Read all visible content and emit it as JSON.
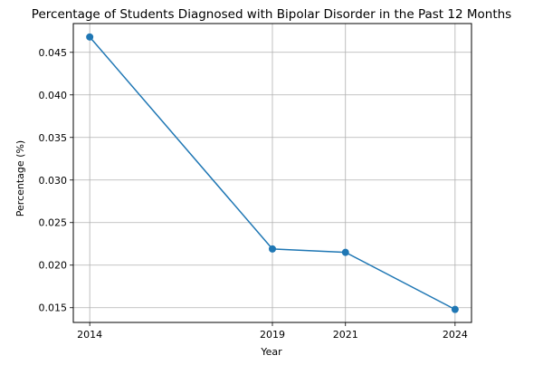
{
  "chart_data": {
    "type": "line",
    "title": "Percentage of Students Diagnosed with Bipolar Disorder in the Past 12 Months",
    "xlabel": "Year",
    "ylabel": "Percentage (%)",
    "x": [
      2014,
      2019,
      2021,
      2024
    ],
    "x_tick_labels": [
      "2014",
      "2019",
      "2021",
      "2024"
    ],
    "series": [
      {
        "values": [
          0.0468,
          0.0219,
          0.0215,
          0.0148
        ]
      }
    ],
    "xlim": [
      2013.55,
      2024.45
    ],
    "ylim": [
      0.01327,
      0.04838
    ],
    "y_ticks": [
      0.015,
      0.02,
      0.025,
      0.03,
      0.035,
      0.04,
      0.045
    ],
    "y_tick_labels": [
      "0.015",
      "0.020",
      "0.025",
      "0.030",
      "0.035",
      "0.040",
      "0.045"
    ],
    "grid": true,
    "colors": {
      "line": "#1f77b4",
      "grid": "#b0b0b0",
      "axis": "#000000"
    }
  }
}
